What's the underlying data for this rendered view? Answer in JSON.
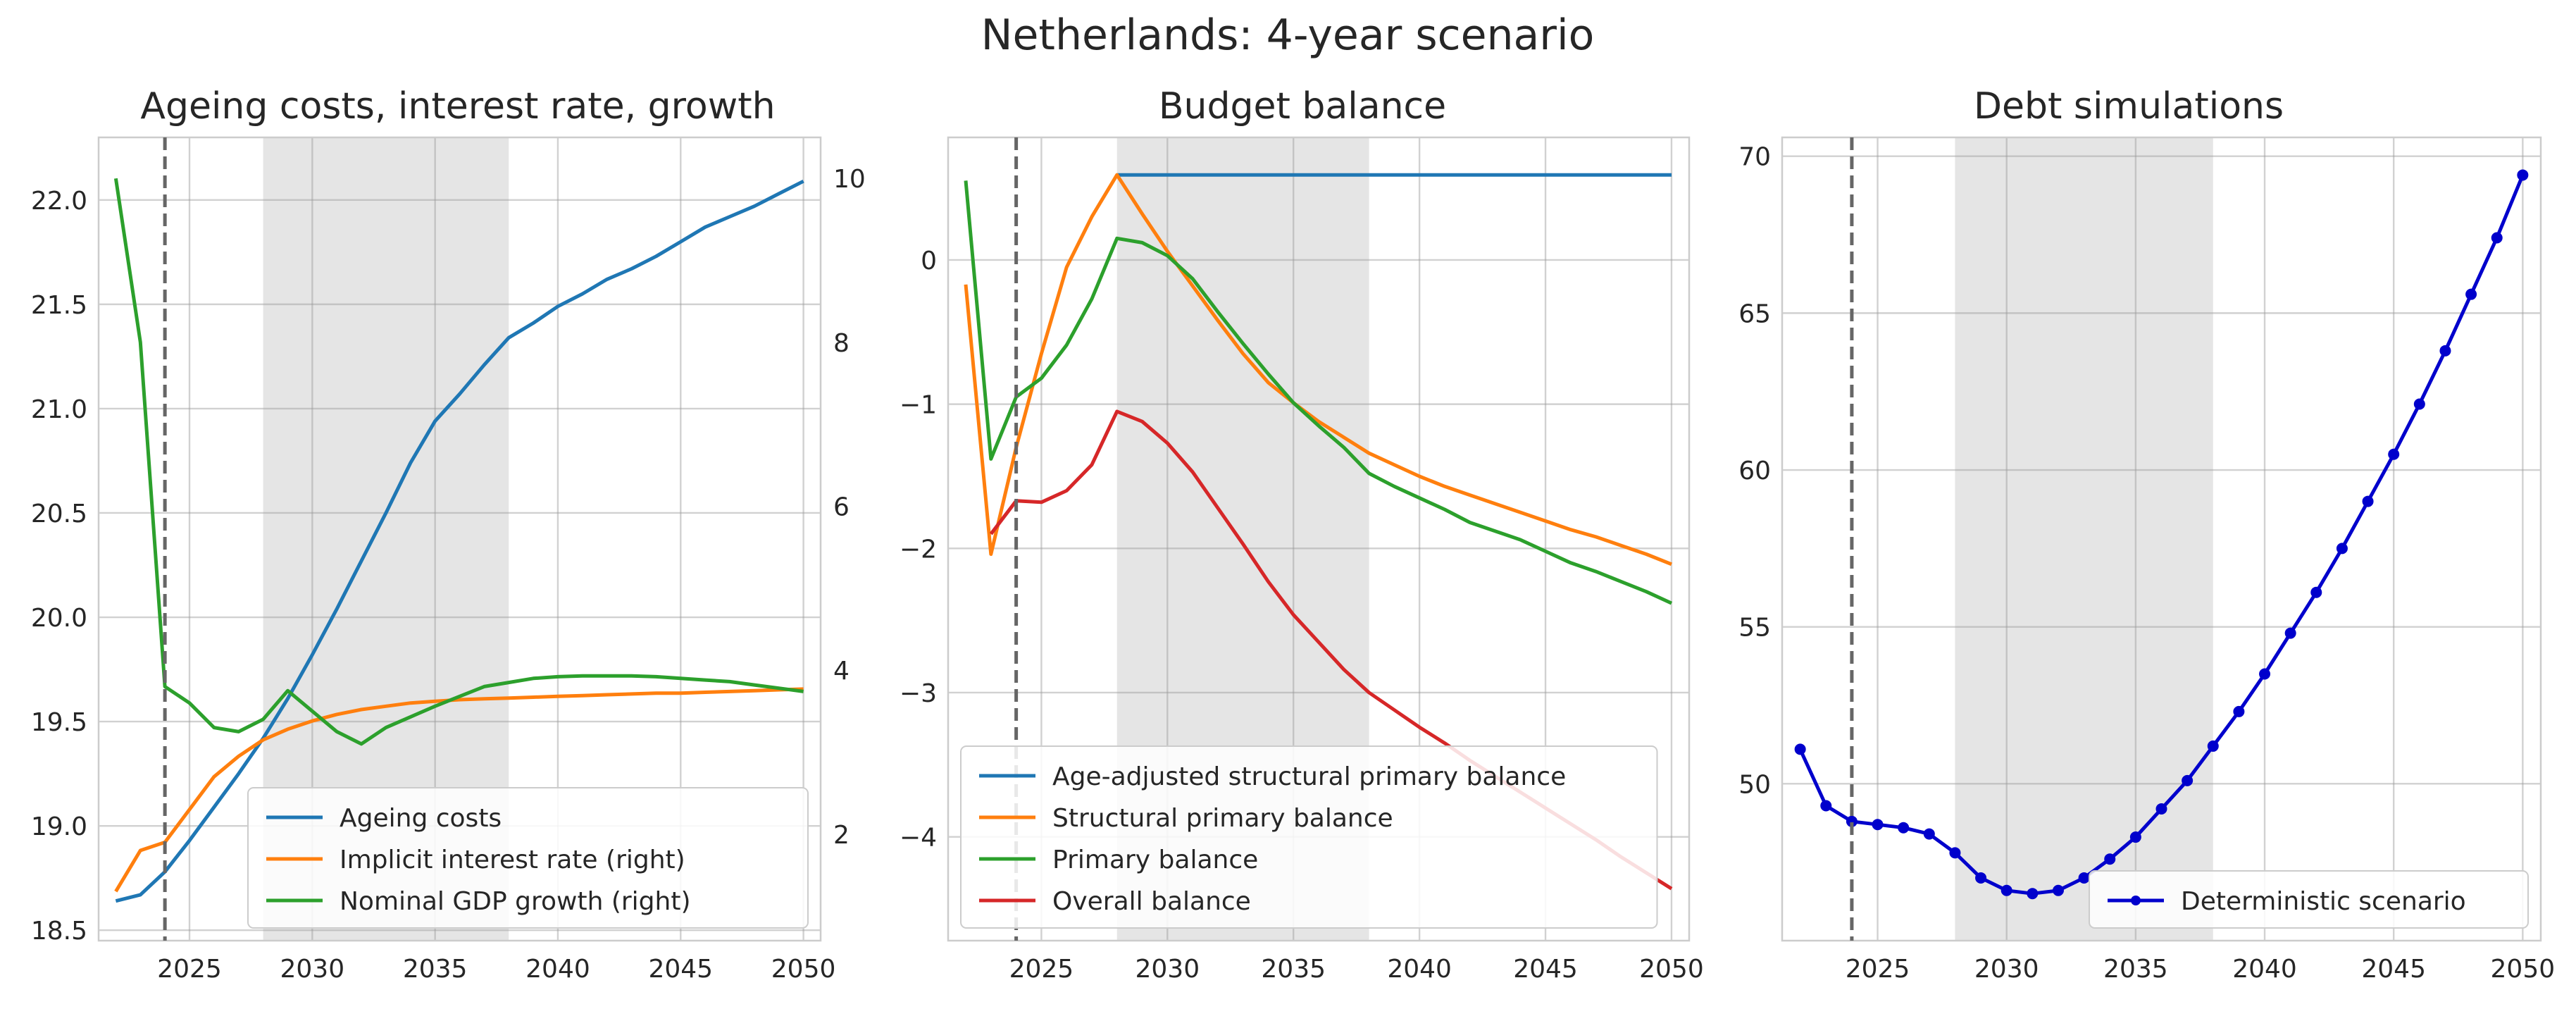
{
  "figure_title": "Netherlands: 4-year scenario",
  "colors": {
    "blue": "#1f77b4",
    "orange": "#ff7f0e",
    "green": "#2ca02c",
    "red": "#d62728",
    "deterministic": "#0000cc",
    "shade": "#e5e5e5",
    "grid": "#cccccc",
    "vline": "#666666"
  },
  "chart_data": [
    {
      "type": "line",
      "title": "Ageing costs, interest rate, growth",
      "xlabel": "",
      "ylabel": "",
      "xlim": [
        2021.3,
        2050.7
      ],
      "ylim": [
        18.45,
        22.3
      ],
      "y2lim": [
        0.7,
        10.5
      ],
      "xticks": [
        2025,
        2030,
        2035,
        2040,
        2045,
        2050
      ],
      "yticks": [
        18.5,
        19.0,
        19.5,
        20.0,
        20.5,
        21.0,
        21.5,
        22.0
      ],
      "y2ticks": [
        2,
        4,
        6,
        8,
        10
      ],
      "shaded_region": [
        2028,
        2038
      ],
      "vline": 2024,
      "grid": true,
      "legend_position": "lower-right",
      "x": [
        2022,
        2023,
        2024,
        2025,
        2026,
        2027,
        2028,
        2029,
        2030,
        2031,
        2032,
        2033,
        2034,
        2035,
        2036,
        2037,
        2038,
        2039,
        2040,
        2041,
        2042,
        2043,
        2044,
        2045,
        2046,
        2047,
        2048,
        2049,
        2050
      ],
      "series": [
        {
          "name": "Ageing costs",
          "axis": "left",
          "color": "blue",
          "values": [
            18.64,
            18.67,
            18.78,
            18.93,
            19.09,
            19.25,
            19.42,
            19.61,
            19.82,
            20.04,
            20.27,
            20.5,
            20.74,
            20.94,
            21.07,
            21.21,
            21.34,
            21.41,
            21.49,
            21.55,
            21.62,
            21.67,
            21.73,
            21.8,
            21.87,
            21.92,
            21.97,
            22.03,
            22.09
          ]
        },
        {
          "name": "Implicit interest rate (right)",
          "axis": "right",
          "color": "orange",
          "values": [
            1.3,
            1.8,
            1.9,
            2.3,
            2.7,
            2.95,
            3.15,
            3.28,
            3.38,
            3.46,
            3.52,
            3.56,
            3.6,
            3.62,
            3.64,
            3.65,
            3.66,
            3.67,
            3.68,
            3.69,
            3.7,
            3.71,
            3.72,
            3.72,
            3.73,
            3.74,
            3.75,
            3.76,
            3.77
          ]
        },
        {
          "name": "Nominal GDP growth (right)",
          "axis": "right",
          "color": "green",
          "values": [
            10.0,
            8.0,
            3.8,
            3.6,
            3.3,
            3.25,
            3.4,
            3.75,
            3.5,
            3.25,
            3.1,
            3.3,
            3.43,
            3.56,
            3.68,
            3.8,
            3.85,
            3.9,
            3.92,
            3.93,
            3.93,
            3.93,
            3.92,
            3.9,
            3.88,
            3.86,
            3.82,
            3.78,
            3.74
          ]
        }
      ]
    },
    {
      "type": "line",
      "title": "Budget balance",
      "xlabel": "",
      "ylabel": "",
      "xlim": [
        2021.3,
        2050.7
      ],
      "ylim": [
        -4.72,
        0.85
      ],
      "xticks": [
        2025,
        2030,
        2035,
        2040,
        2045,
        2050
      ],
      "yticks": [
        0,
        -1,
        -2,
        -3,
        -4
      ],
      "ytick_labels": [
        "0",
        "−1",
        "−2",
        "−3",
        "−4"
      ],
      "shaded_region": [
        2028,
        2038
      ],
      "vline": 2024,
      "grid": true,
      "legend_position": "lower-left",
      "x": [
        2022,
        2023,
        2024,
        2025,
        2026,
        2027,
        2028,
        2029,
        2030,
        2031,
        2032,
        2033,
        2034,
        2035,
        2036,
        2037,
        2038,
        2039,
        2040,
        2041,
        2042,
        2043,
        2044,
        2045,
        2046,
        2047,
        2048,
        2049,
        2050
      ],
      "series": [
        {
          "name": "Age-adjusted structural primary balance",
          "color": "blue",
          "x": [
            2028,
            2050
          ],
          "values": [
            0.59,
            0.59
          ]
        },
        {
          "name": "Structural primary balance",
          "color": "orange",
          "values": [
            -0.17,
            -2.04,
            -1.3,
            -0.65,
            -0.05,
            0.3,
            0.59,
            0.32,
            0.06,
            -0.18,
            -0.42,
            -0.65,
            -0.85,
            -0.99,
            -1.12,
            -1.23,
            -1.34,
            -1.42,
            -1.5,
            -1.57,
            -1.63,
            -1.69,
            -1.75,
            -1.81,
            -1.87,
            -1.92,
            -1.98,
            -2.04,
            -2.11
          ]
        },
        {
          "name": "Primary balance",
          "color": "green",
          "values": [
            0.55,
            -1.38,
            -0.95,
            -0.82,
            -0.59,
            -0.27,
            0.15,
            0.12,
            0.03,
            -0.13,
            -0.36,
            -0.58,
            -0.79,
            -0.99,
            -1.15,
            -1.3,
            -1.48,
            -1.57,
            -1.65,
            -1.73,
            -1.82,
            -1.88,
            -1.94,
            -2.02,
            -2.1,
            -2.16,
            -2.23,
            -2.3,
            -2.38
          ]
        },
        {
          "name": "Overall balance",
          "color": "red",
          "values": [
            null,
            -1.9,
            -1.67,
            -1.68,
            -1.6,
            -1.42,
            -1.05,
            -1.12,
            -1.27,
            -1.47,
            -1.72,
            -1.97,
            -2.23,
            -2.46,
            -2.65,
            -2.84,
            -3.0,
            -3.12,
            -3.24,
            -3.35,
            -3.47,
            -3.58,
            -3.69,
            -3.8,
            -3.91,
            -4.02,
            -4.14,
            -4.25,
            -4.36
          ]
        }
      ]
    },
    {
      "type": "line",
      "title": "Debt simulations",
      "xlabel": "",
      "ylabel": "",
      "xlim": [
        2021.3,
        2050.7
      ],
      "ylim": [
        45.0,
        70.6
      ],
      "xticks": [
        2025,
        2030,
        2035,
        2040,
        2045,
        2050
      ],
      "yticks": [
        50,
        55,
        60,
        65,
        70
      ],
      "shaded_region": [
        2028,
        2038
      ],
      "vline": 2024,
      "grid": true,
      "legend_position": "lower-right",
      "x": [
        2022,
        2023,
        2024,
        2025,
        2026,
        2027,
        2028,
        2029,
        2030,
        2031,
        2032,
        2033,
        2034,
        2035,
        2036,
        2037,
        2038,
        2039,
        2040,
        2041,
        2042,
        2043,
        2044,
        2045,
        2046,
        2047,
        2048,
        2049,
        2050
      ],
      "series": [
        {
          "name": "Deterministic scenario",
          "color": "deterministic",
          "markers": true,
          "values": [
            51.1,
            49.3,
            48.8,
            48.7,
            48.6,
            48.4,
            47.8,
            47.0,
            46.6,
            46.5,
            46.6,
            47.0,
            47.6,
            48.3,
            49.2,
            50.1,
            51.2,
            52.3,
            53.5,
            54.8,
            56.1,
            57.5,
            59.0,
            60.5,
            62.1,
            63.8,
            65.6,
            67.4,
            69.4
          ]
        }
      ]
    }
  ]
}
